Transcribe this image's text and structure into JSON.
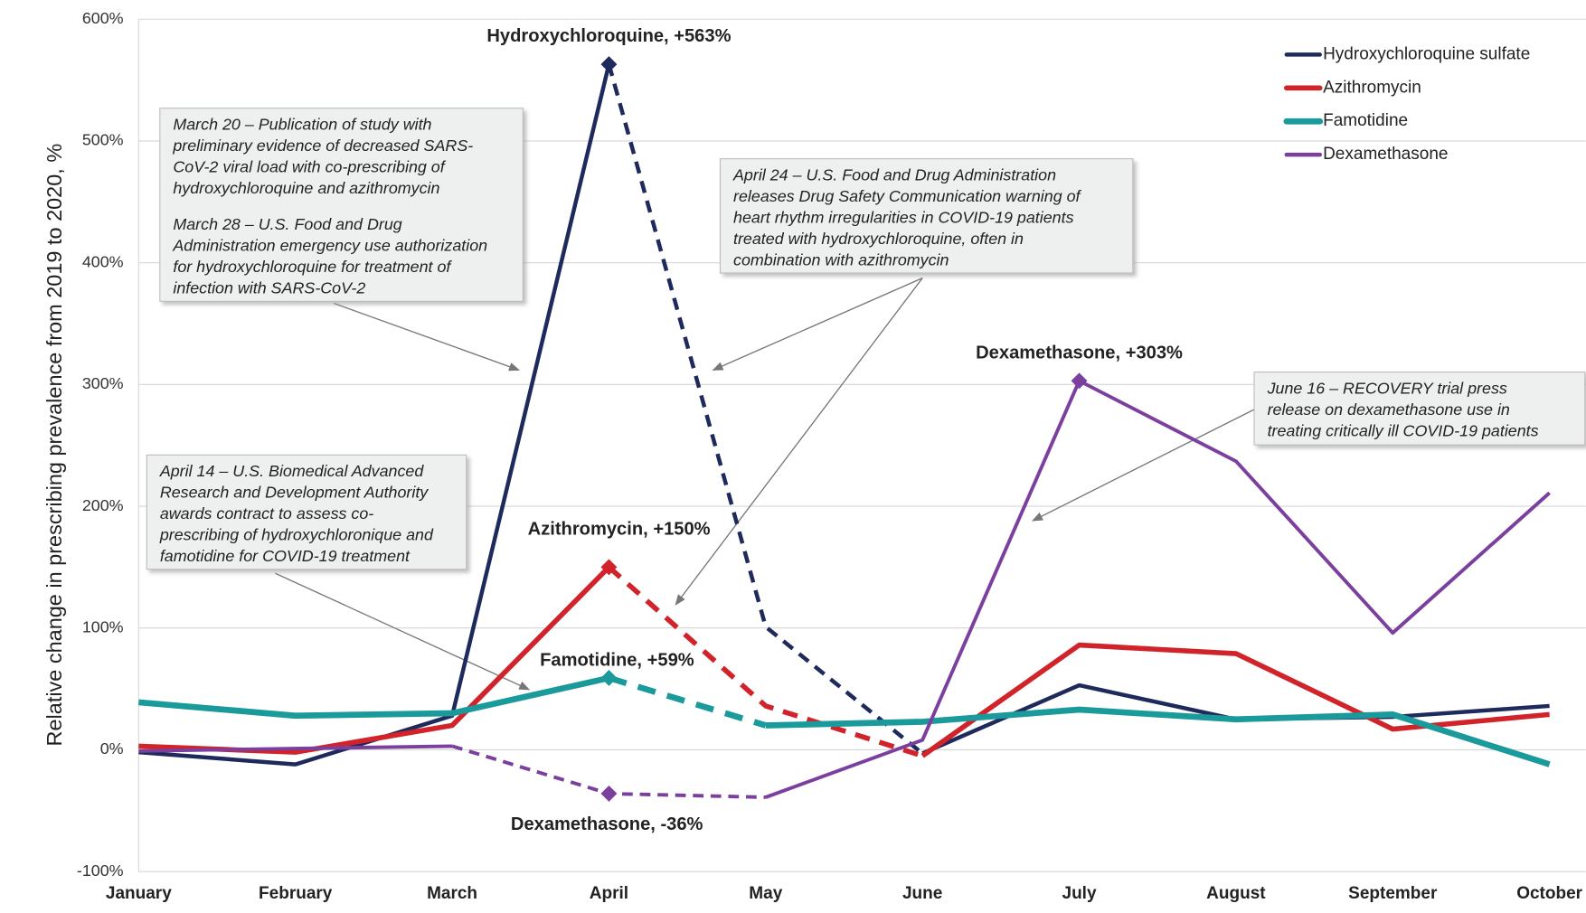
{
  "chart_data": {
    "type": "line",
    "y_axis_label": "Relative change in prescribing prevalence from 2019 to 2020, %",
    "categories": [
      "January",
      "February",
      "March",
      "April",
      "May",
      "June",
      "July",
      "August",
      "September",
      "October"
    ],
    "ylim": [
      -100,
      600
    ],
    "yticks": [
      {
        "value": -100,
        "label": "-100%"
      },
      {
        "value": 0,
        "label": "0%"
      },
      {
        "value": 100,
        "label": "100%"
      },
      {
        "value": 200,
        "label": "200%"
      },
      {
        "value": 300,
        "label": "300%"
      },
      {
        "value": 400,
        "label": "400%"
      },
      {
        "value": 500,
        "label": "500%"
      },
      {
        "value": 600,
        "label": "600%"
      }
    ],
    "grid": true,
    "legend": "top-right",
    "series": [
      {
        "name": "Hydroxychloroquine sulfate",
        "color": "#1f2a5c",
        "width": 4,
        "dashed_from": 3,
        "dashed_to": 5,
        "markers": [
          3
        ],
        "values": [
          -2,
          -12,
          28,
          563,
          101,
          -3,
          53,
          25,
          27,
          36
        ]
      },
      {
        "name": "Azithromycin",
        "color": "#d0232a",
        "width": 5,
        "dashed_from": 3,
        "dashed_to": 5,
        "markers": [
          3
        ],
        "values": [
          3,
          -2,
          20,
          150,
          36,
          -5,
          86,
          79,
          17,
          29
        ]
      },
      {
        "name": "Famotidine",
        "color": "#1a9a9a",
        "width": 6,
        "dashed_from": 3,
        "dashed_to": 4,
        "markers": [
          3
        ],
        "values": [
          39,
          28,
          30,
          59,
          20,
          23,
          33,
          25,
          29,
          -12
        ]
      },
      {
        "name": "Dexamethasone",
        "color": "#7b3f9e",
        "width": 3.5,
        "dashed_from": 2,
        "dashed_to": 4,
        "markers": [
          3,
          6
        ],
        "values": [
          -1,
          1,
          3,
          -36,
          -39,
          8,
          303,
          237,
          96,
          211
        ]
      }
    ],
    "annotations": [
      {
        "text": "Hydroxychloroquine, +563%",
        "series": 0,
        "point": 3
      },
      {
        "text": "Azithromycin, +150%",
        "series": 1,
        "point": 3
      },
      {
        "text": "Famotidine, +59%",
        "series": 2,
        "point": 3
      },
      {
        "text": "Dexamethasone, +303%",
        "series": 3,
        "point": 6
      },
      {
        "text": "Dexamethasone, -36%",
        "series": 3,
        "point": 3
      }
    ],
    "notes": [
      {
        "paragraphs": [
          [
            "March 20 – Publication of study with",
            "preliminary evidence of decreased SARS-",
            "CoV-2 viral load with co-prescribing of",
            "hydroxychloroquine and azithromycin"
          ],
          [
            "March 28 – U.S. Food and Drug",
            "Administration emergency use authorization",
            "for hydroxychloroquine for treatment of",
            "infection with SARS-CoV-2"
          ]
        ]
      },
      {
        "paragraphs": [
          [
            "April 24 – U.S. Food and Drug Administration",
            "releases Drug Safety Communication warning of",
            "heart rhythm irregularities in COVID-19 patients",
            "treated with hydroxychloroquine, often in",
            "combination with azithromycin"
          ]
        ]
      },
      {
        "paragraphs": [
          [
            "April 14 – U.S. Biomedical Advanced",
            "Research and Development Authority",
            "awards contract to assess co-",
            "prescribing of hydroxychloronique and",
            "famotidine for COVID-19 treatment"
          ]
        ]
      },
      {
        "paragraphs": [
          [
            "June 16 – RECOVERY trial press",
            "release on dexamethasone use in",
            "treating critically ill COVID-19 patients"
          ]
        ]
      }
    ]
  }
}
